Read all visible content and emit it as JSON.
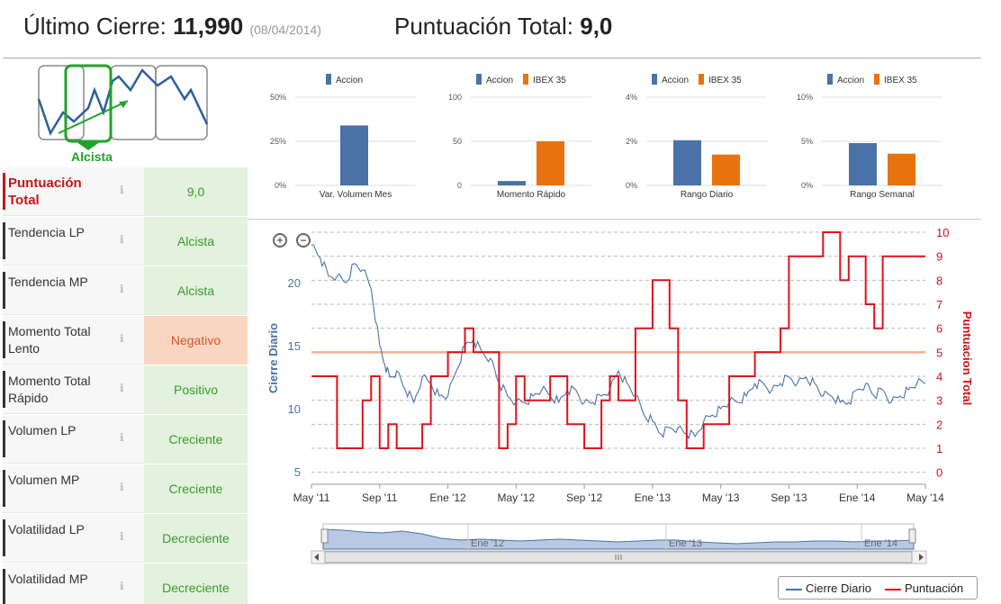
{
  "header": {
    "close_label": "Último Cierre:",
    "close_value": "11,990",
    "close_date": "(08/04/2014)",
    "score_label": "Puntuación Total:",
    "score_value": "9,0"
  },
  "logo": {
    "label": "Alcista"
  },
  "rows": [
    {
      "label": "Puntuación Total",
      "value": "9,0",
      "kind": "first"
    },
    {
      "label": "Tendencia LP",
      "value": "Alcista",
      "kind": "pos"
    },
    {
      "label": "Tendencia MP",
      "value": "Alcista",
      "kind": "pos"
    },
    {
      "label": "Momento Total Lento",
      "value": "Negativo",
      "kind": "neg"
    },
    {
      "label": "Momento Total Rápido",
      "value": "Positivo",
      "kind": "pos"
    },
    {
      "label": "Volumen LP",
      "value": "Creciente",
      "kind": "pos"
    },
    {
      "label": "Volumen MP",
      "value": "Creciente",
      "kind": "pos"
    },
    {
      "label": "Volatilidad LP",
      "value": "Decreciente",
      "kind": "pos"
    },
    {
      "label": "Volatilidad MP",
      "value": "Decreciente",
      "kind": "pos"
    }
  ],
  "colors": {
    "accion": "#4a72a8",
    "ibex": "#e8730e",
    "score": "#e0101c",
    "price": "#4a72a8",
    "green": "#22a22a"
  },
  "chart_data": [
    {
      "type": "bar",
      "categories": [
        "Var. Volumen Mes"
      ],
      "series": [
        {
          "name": "Accion",
          "values": [
            34
          ]
        }
      ],
      "yticks": [
        "0%",
        "25%",
        "50%"
      ],
      "ylim": [
        0,
        50
      ]
    },
    {
      "type": "bar",
      "categories": [
        "Momento Rápido"
      ],
      "series": [
        {
          "name": "Accion",
          "values": [
            5
          ]
        },
        {
          "name": "IBEX 35",
          "values": [
            50
          ]
        }
      ],
      "yticks": [
        "0",
        "50",
        "100"
      ],
      "ylim": [
        0,
        100
      ]
    },
    {
      "type": "bar",
      "categories": [
        "Rango Diario"
      ],
      "series": [
        {
          "name": "Accion",
          "values": [
            2.05
          ]
        },
        {
          "name": "IBEX 35",
          "values": [
            1.4
          ]
        }
      ],
      "yticks": [
        "0%",
        "2%",
        "4%"
      ],
      "ylim": [
        0,
        4
      ]
    },
    {
      "type": "bar",
      "categories": [
        "Rango Semanal"
      ],
      "series": [
        {
          "name": "Accion",
          "values": [
            4.8
          ]
        },
        {
          "name": "IBEX 35",
          "values": [
            3.6
          ]
        }
      ],
      "yticks": [
        "0%",
        "5%",
        "10%"
      ],
      "ylim": [
        0,
        10
      ]
    },
    {
      "type": "line",
      "ylabel": "Cierre Diario",
      "y2label": "Puntuacion Total",
      "ylim": [
        4,
        24
      ],
      "y2lim": [
        -0.5,
        10
      ],
      "yticks": [
        5,
        10,
        15,
        20
      ],
      "y2ticks": [
        0,
        1,
        2,
        3,
        4,
        5,
        6,
        7,
        8,
        9,
        10
      ],
      "xticks": [
        "May '11",
        "Sep '11",
        "Ene '12",
        "May '12",
        "Sep '12",
        "Ene '13",
        "May '13",
        "Sep '13",
        "Ene '14",
        "May '14"
      ],
      "xrange": [
        0,
        36
      ],
      "series": [
        {
          "name": "Cierre Diario",
          "x": [
            0,
            0.5,
            1,
            1.5,
            2,
            2.5,
            3,
            3.5,
            4,
            4.3,
            4.6,
            5,
            5.5,
            6,
            6.5,
            7,
            7.5,
            8,
            8.5,
            9,
            9.5,
            10,
            10.5,
            11,
            11.5,
            12,
            12.5,
            13,
            13.5,
            14,
            14.5,
            15,
            15.5,
            16,
            16.5,
            17,
            17.5,
            18,
            18.5,
            19,
            19.5,
            20,
            20.5,
            21,
            21.5,
            22,
            22.5,
            23,
            23.5,
            24,
            24.5,
            25,
            25.5,
            26,
            26.5,
            27,
            27.5,
            28,
            28.5,
            29,
            29.5,
            30,
            30.5,
            31,
            31.5,
            32,
            32.5,
            33,
            33.5,
            34,
            34.5,
            35,
            35.5,
            36
          ],
          "y": [
            23,
            22,
            20.5,
            20.5,
            20,
            21.5,
            21,
            19.5,
            15,
            13.5,
            12.5,
            13,
            11.5,
            10.5,
            12.5,
            12,
            11,
            11,
            13,
            15,
            15.5,
            14.5,
            14,
            12,
            11,
            10.5,
            10.5,
            11,
            11.5,
            11,
            10.5,
            11.5,
            11.5,
            10.5,
            10.5,
            11,
            11.5,
            13,
            12,
            11,
            9.5,
            9,
            8,
            8.5,
            8.5,
            8,
            7.8,
            9,
            9.5,
            10,
            10.5,
            10.5,
            11,
            12,
            12,
            11.5,
            12,
            12.5,
            12,
            12.5,
            12,
            11,
            11,
            10.5,
            10.5,
            11.5,
            12,
            11,
            11.5,
            10.5,
            11,
            11.5,
            12,
            12
          ]
        },
        {
          "name": "Puntuación",
          "x": [
            0,
            1.5,
            1.5,
            3,
            3,
            3.5,
            3.5,
            4,
            4,
            4.5,
            4.5,
            5,
            5,
            6.5,
            6.5,
            7,
            7,
            8,
            8,
            9,
            9,
            9.5,
            9.5,
            11,
            11,
            11.5,
            11.5,
            12,
            12,
            12.5,
            12.5,
            14,
            14,
            15,
            15,
            16,
            16,
            17,
            17,
            17.5,
            17.5,
            18,
            18,
            19,
            19,
            20,
            20,
            21,
            21,
            21.5,
            21.5,
            22,
            22,
            23,
            23,
            24.5,
            24.5,
            26,
            26,
            27.5,
            27.5,
            28,
            28,
            30,
            30,
            31,
            31,
            31.5,
            31.5,
            32.5,
            32.5,
            33,
            33,
            33.5,
            33.5,
            36
          ],
          "y": [
            4,
            4,
            1,
            1,
            3,
            3,
            4,
            4,
            1,
            1,
            2,
            2,
            1,
            1,
            2,
            2,
            4,
            4,
            5,
            5,
            6,
            6,
            5,
            5,
            1,
            1,
            2,
            2,
            4,
            4,
            3,
            3,
            4,
            4,
            2,
            2,
            1,
            1,
            3,
            3,
            4,
            4,
            3,
            3,
            6,
            6,
            8,
            8,
            6,
            6,
            3,
            3,
            1,
            1,
            2,
            2,
            4,
            4,
            5,
            5,
            6,
            6,
            9,
            9,
            10,
            10,
            8,
            8,
            9,
            9,
            7,
            7,
            6,
            6,
            9,
            9
          ]
        }
      ]
    }
  ],
  "navigator": {
    "labels": [
      "Ene '12",
      "Ene '13",
      "Ene '14"
    ]
  },
  "zoom": {
    "in": "+",
    "out": "−"
  },
  "legend": {
    "price": "Cierre Diario",
    "score": "Puntuación"
  }
}
